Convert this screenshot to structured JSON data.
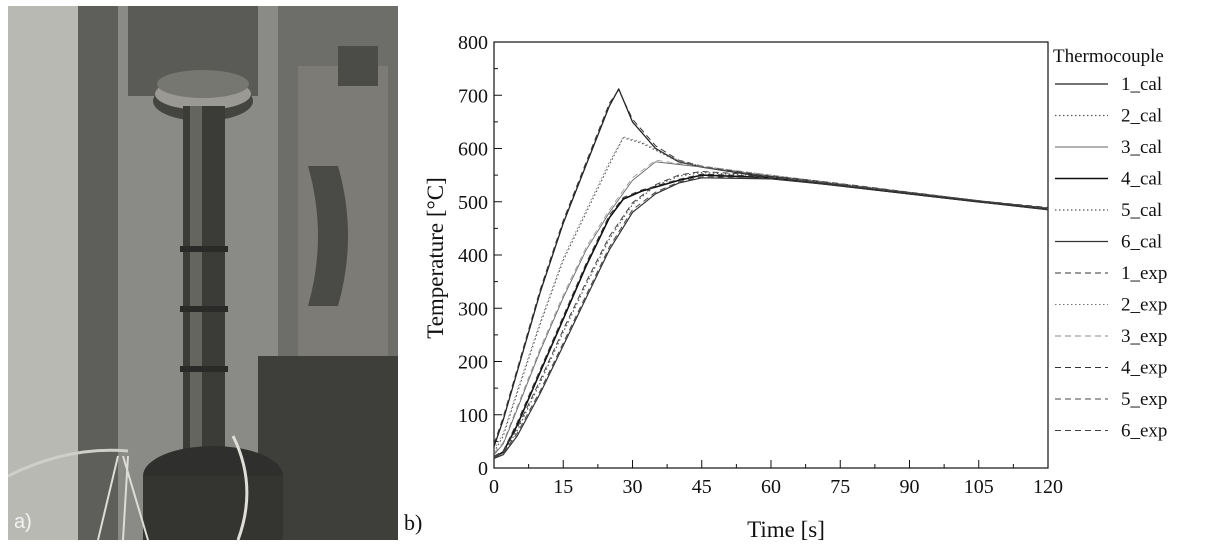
{
  "panels": {
    "a_label": "a)",
    "b_label": "b)"
  },
  "chart_data": {
    "type": "line",
    "xlabel": "Time [s]",
    "ylabel": "Temperature [°C]",
    "xlim": [
      0,
      120
    ],
    "ylim": [
      0,
      800
    ],
    "xticks": [
      "0",
      "15",
      "30",
      "45",
      "60",
      "75",
      "90",
      "105",
      "120"
    ],
    "yticks": [
      "0",
      "100",
      "200",
      "300",
      "400",
      "500",
      "600",
      "700",
      "800"
    ],
    "grid": false,
    "legend_title": "Thermocouple",
    "legend_position": "right",
    "series": [
      {
        "name": "1_cal",
        "dash": "solid",
        "width": 1.3,
        "color": "#222222",
        "x": [
          0,
          2,
          5,
          10,
          15,
          20,
          25,
          27,
          30,
          35,
          40,
          45,
          60,
          75,
          90,
          105,
          120
        ],
        "y": [
          40,
          90,
          180,
          330,
          460,
          570,
          680,
          712,
          650,
          600,
          575,
          565,
          545,
          530,
          515,
          500,
          485
        ]
      },
      {
        "name": "2_cal",
        "dash": "dotted",
        "width": 1.2,
        "color": "#555555",
        "x": [
          0,
          2,
          5,
          10,
          15,
          20,
          25,
          28,
          32,
          40,
          45,
          60,
          75,
          90,
          105,
          120
        ],
        "y": [
          30,
          60,
          140,
          270,
          390,
          480,
          570,
          620,
          610,
          575,
          565,
          548,
          532,
          516,
          500,
          486
        ]
      },
      {
        "name": "3_cal",
        "dash": "solid",
        "width": 0.9,
        "color": "#666666",
        "x": [
          0,
          2,
          5,
          10,
          15,
          20,
          25,
          30,
          35,
          40,
          45,
          60,
          75,
          90,
          105,
          120
        ],
        "y": [
          25,
          45,
          110,
          220,
          320,
          410,
          480,
          540,
          575,
          570,
          565,
          548,
          532,
          516,
          500,
          486
        ]
      },
      {
        "name": "4_cal",
        "dash": "solid",
        "width": 1.6,
        "color": "#111111",
        "x": [
          0,
          2,
          5,
          10,
          15,
          20,
          25,
          28,
          32,
          40,
          45,
          60,
          75,
          90,
          105,
          120
        ],
        "y": [
          20,
          30,
          80,
          180,
          280,
          380,
          470,
          505,
          520,
          540,
          550,
          545,
          530,
          515,
          500,
          487
        ]
      },
      {
        "name": "5_cal",
        "dash": "dotted",
        "width": 1.2,
        "color": "#555555",
        "x": [
          0,
          2,
          5,
          10,
          15,
          20,
          25,
          30,
          35,
          40,
          45,
          60,
          75,
          90,
          105,
          120
        ],
        "y": [
          20,
          28,
          70,
          160,
          255,
          345,
          430,
          495,
          530,
          548,
          555,
          547,
          532,
          516,
          500,
          486
        ]
      },
      {
        "name": "6_cal",
        "dash": "solid",
        "width": 1.2,
        "color": "#333333",
        "x": [
          0,
          2,
          5,
          10,
          15,
          20,
          25,
          30,
          35,
          40,
          45,
          60,
          75,
          90,
          105,
          120
        ],
        "y": [
          18,
          25,
          60,
          140,
          230,
          320,
          410,
          480,
          515,
          535,
          545,
          543,
          530,
          515,
          500,
          485
        ]
      },
      {
        "name": "1_exp",
        "dash": "dashed",
        "width": 1.0,
        "color": "#333333",
        "x": [
          0,
          2,
          5,
          10,
          15,
          20,
          25,
          27,
          30,
          35,
          40,
          45,
          60,
          75,
          90,
          105,
          120
        ],
        "y": [
          45,
          95,
          185,
          335,
          465,
          575,
          685,
          710,
          655,
          605,
          578,
          567,
          547,
          532,
          517,
          502,
          488
        ]
      },
      {
        "name": "2_exp",
        "dash": "dotted",
        "width": 0.8,
        "color": "#777777",
        "x": [
          0,
          2,
          5,
          10,
          15,
          20,
          25,
          28,
          32,
          40,
          45,
          60,
          75,
          90,
          105,
          120
        ],
        "y": [
          35,
          65,
          145,
          275,
          395,
          485,
          575,
          622,
          612,
          578,
          567,
          550,
          534,
          518,
          502,
          488
        ]
      },
      {
        "name": "3_exp",
        "dash": "dashed",
        "width": 0.7,
        "color": "#888888",
        "x": [
          0,
          2,
          5,
          10,
          15,
          20,
          25,
          30,
          35,
          40,
          45,
          60,
          75,
          90,
          105,
          120
        ],
        "y": [
          28,
          48,
          115,
          225,
          325,
          415,
          485,
          545,
          578,
          572,
          567,
          550,
          534,
          518,
          502,
          488
        ]
      },
      {
        "name": "4_exp",
        "dash": "dashed",
        "width": 1.0,
        "color": "#333333",
        "x": [
          0,
          2,
          5,
          10,
          15,
          20,
          25,
          28,
          32,
          40,
          45,
          60,
          75,
          90,
          105,
          120
        ],
        "y": [
          22,
          32,
          85,
          185,
          285,
          385,
          475,
          508,
          522,
          542,
          552,
          547,
          532,
          517,
          502,
          489
        ]
      },
      {
        "name": "5_exp",
        "dash": "dashed",
        "width": 1.0,
        "color": "#444444",
        "x": [
          0,
          2,
          5,
          10,
          15,
          20,
          25,
          30,
          35,
          40,
          45,
          60,
          75,
          90,
          105,
          120
        ],
        "y": [
          22,
          30,
          75,
          165,
          260,
          350,
          435,
          498,
          532,
          550,
          557,
          549,
          534,
          518,
          502,
          488
        ]
      },
      {
        "name": "6_exp",
        "dash": "dashed",
        "width": 1.0,
        "color": "#444444",
        "x": [
          0,
          2,
          5,
          10,
          15,
          20,
          25,
          30,
          35,
          40,
          45,
          60,
          75,
          90,
          105,
          120
        ],
        "y": [
          20,
          28,
          65,
          145,
          235,
          325,
          415,
          485,
          518,
          537,
          547,
          545,
          532,
          517,
          502,
          487
        ]
      }
    ]
  }
}
